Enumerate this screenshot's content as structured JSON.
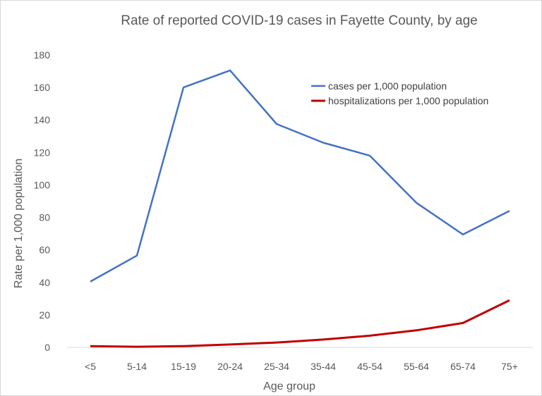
{
  "chart_data": {
    "type": "line",
    "title": "Rate of reported COVID-19 cases in Fayette County, by age",
    "xlabel": "Age group",
    "ylabel": "Rate per 1,000 population",
    "categories": [
      "<5",
      "5-14",
      "15-19",
      "20-24",
      "25-34",
      "35-44",
      "45-54",
      "55-64",
      "65-74",
      "75+"
    ],
    "ylim": [
      0,
      180
    ],
    "yticks": [
      0,
      20,
      40,
      60,
      80,
      100,
      120,
      140,
      160,
      180
    ],
    "grid": false,
    "legend_position": "top-right",
    "series": [
      {
        "name": "cases per 1,000 population",
        "color": "#4472c4",
        "values": [
          40.5,
          56.5,
          160,
          170.5,
          137.5,
          126,
          118,
          89,
          69.5,
          84
        ]
      },
      {
        "name": "hospitalizations per 1,000 population",
        "color": "#c00000",
        "values": [
          0.8,
          0.4,
          0.8,
          1.8,
          3,
          4.8,
          7.2,
          10.5,
          15,
          29
        ]
      }
    ]
  }
}
